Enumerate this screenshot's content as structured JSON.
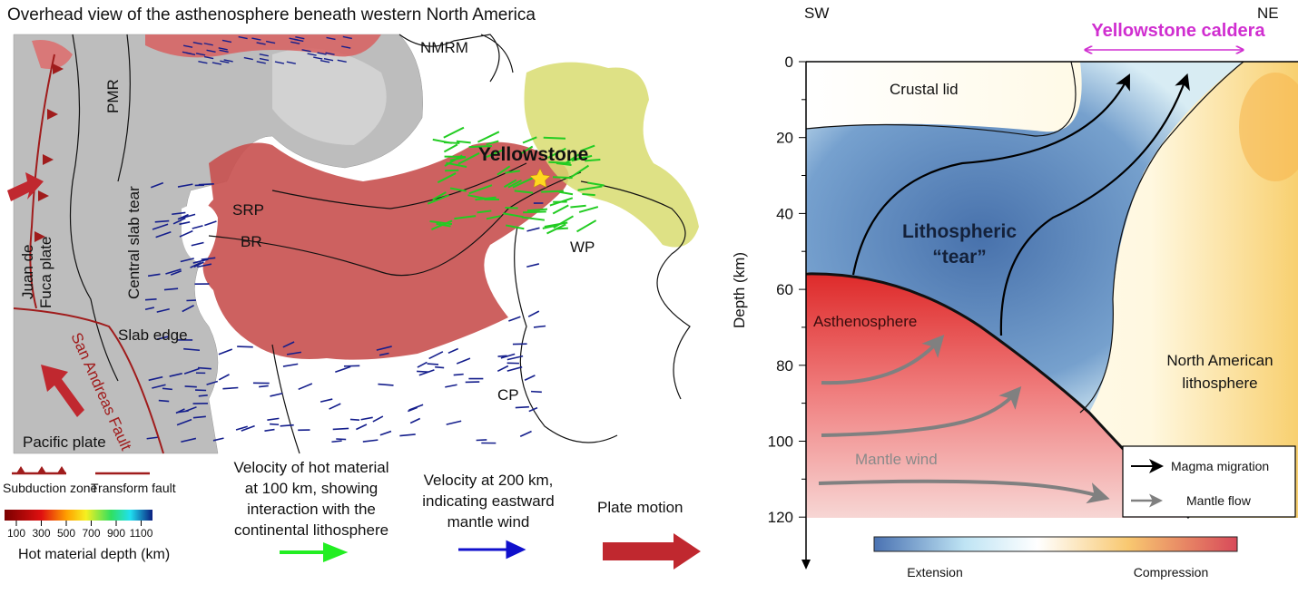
{
  "left_panel": {
    "title": "Overhead view of the asthenosphere beneath western North America",
    "map_labels": {
      "nmrm": "NMRM",
      "pmr": "PMR",
      "yellowstone": "Yellowstone",
      "central_slab_tear": "Central slab tear",
      "srp": "SRP",
      "br": "BR",
      "wp": "WP",
      "juan_de_fuca_1": "Juan de",
      "juan_de_fuca_2": "Fuca plate",
      "slab_edge": "Slab edge",
      "san_andreas": "San Andreas Fault",
      "cp": "CP",
      "pacific_plate": "Pacific plate"
    },
    "legend": {
      "subduction_zone": "Subduction zone",
      "transform_fault": "Transform fault",
      "colorbar_ticks": [
        "100",
        "300",
        "500",
        "700",
        "900",
        "1100"
      ],
      "colorbar_label": "Hot material depth (km)",
      "green_arrow_text": [
        "Velocity of hot material",
        "at 100 km, showing",
        "interaction with the",
        "continental lithosphere"
      ],
      "blue_arrow_text": [
        "Velocity at 200 km,",
        "indicating eastward",
        "mantle wind"
      ],
      "red_arrow_text": "Plate motion"
    },
    "colors": {
      "hot_material": "#c8504f",
      "slab": "#b8b8b8",
      "green_vector": "#22cc22",
      "blue_vector": "#141e8c",
      "plate_motion": "#c0282f",
      "fault": "#a01c1c"
    }
  },
  "right_panel": {
    "sw": "SW",
    "ne": "NE",
    "caldera": "Yellowstone caldera",
    "y_axis_label": "Depth (km)",
    "y_ticks": [
      "0",
      "20",
      "40",
      "60",
      "80",
      "100",
      "120"
    ],
    "regions": {
      "crustal_lid": "Crustal lid",
      "tear_1": "Lithospheric",
      "tear_2": "“tear”",
      "asthenosphere": "Asthenosphere",
      "mantle_wind": "Mantle wind",
      "na_lith_1": "North American",
      "na_lith_2": "lithosphere"
    },
    "legend": {
      "magma": "Magma migration",
      "mantle": "Mantle flow"
    },
    "colorbar": {
      "left": "Extension",
      "right": "Compression"
    },
    "colors": {
      "caldera": "#d02ed0",
      "extension": "#3f6fb0",
      "compression": "#d85060",
      "asthenosphere": "#e03a3a"
    }
  }
}
